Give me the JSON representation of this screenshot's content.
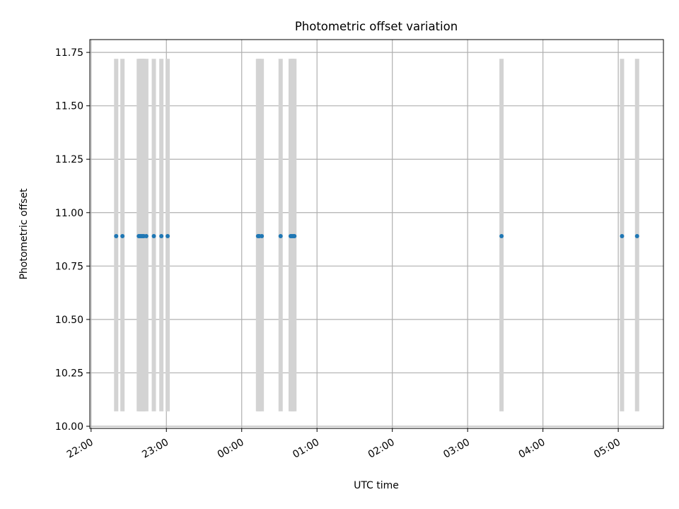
{
  "chart_data": {
    "type": "scatter",
    "title": "Photometric offset variation",
    "xlabel": "UTC time",
    "ylabel": "Photometric offset",
    "xlim": [
      "21:59",
      "05:36"
    ],
    "ylim": [
      9.99,
      11.81
    ],
    "grid": true,
    "x_ticks": [
      "22:00",
      "23:00",
      "00:00",
      "01:00",
      "02:00",
      "03:00",
      "04:00",
      "05:00"
    ],
    "y_ticks": [
      "10.00",
      "10.25",
      "10.50",
      "10.75",
      "11.00",
      "11.25",
      "11.50",
      "11.75"
    ],
    "band_ylim": [
      10.07,
      11.72
    ],
    "colors": {
      "points": "#1f77b4",
      "bands": "#d3d3d3",
      "grid": "#b0b0b0"
    },
    "series": [
      {
        "x": [
          "22:20",
          "22:25",
          "22:38",
          "22:39",
          "22:40",
          "22:41",
          "22:42",
          "22:44",
          "22:50",
          "22:56",
          "23:01",
          "00:13",
          "00:14",
          "00:16",
          "00:31",
          "00:39",
          "00:40",
          "00:41",
          "00:42",
          "03:27",
          "05:03",
          "05:15"
        ],
        "y": [
          10.89,
          10.89,
          10.89,
          10.89,
          10.89,
          10.89,
          10.89,
          10.89,
          10.89,
          10.89,
          10.89,
          10.89,
          10.89,
          10.89,
          10.89,
          10.89,
          10.89,
          10.89,
          10.89,
          10.89,
          10.89,
          10.89
        ]
      }
    ]
  }
}
